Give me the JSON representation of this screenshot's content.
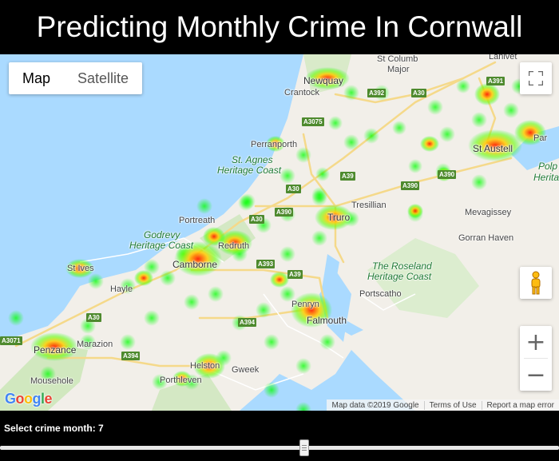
{
  "title": "Predicting Monthly Crime In Cornwall",
  "map_type": {
    "map_label": "Map",
    "satellite_label": "Satellite",
    "selected": "Map"
  },
  "icons": {
    "fullscreen": "fullscreen-icon",
    "pegman": "pegman-icon",
    "zoom_in": "+",
    "zoom_out": "−"
  },
  "attribution": {
    "map_data": "Map data ©2019 Google",
    "terms": "Terms of Use",
    "report": "Report a map error"
  },
  "logo": [
    "G",
    "o",
    "o",
    "g",
    "l",
    "e"
  ],
  "places": {
    "st_columb": "St Columb",
    "major": "Major",
    "lanivet": "Lanivet",
    "newquay": "Newquay",
    "crantock": "Crantock",
    "perranporth": "Perranporth",
    "st_agnes": "St. Agnes",
    "heritage_coast1": "Heritage Coast",
    "st_austell": "St Austell",
    "par": "Par",
    "polp": "Polp",
    "herita": "Herita",
    "tresillian": "Tresillian",
    "truro": "Truro",
    "mevagissey": "Mevagissey",
    "portreath": "Portreath",
    "godrevy": "Godrevy",
    "heritage_coast2": "Heritage Coast",
    "redruth": "Redruth",
    "camborne": "Camborne",
    "gorran_haven": "Gorran Haven",
    "roseland": "The Roseland",
    "heritage_coast3": "Heritage Coast",
    "st_ives": "St Ives",
    "hayle": "Hayle",
    "portscatho": "Portscatho",
    "penryn": "Penryn",
    "falmouth": "Falmouth",
    "marazion": "Marazion",
    "penzance": "Penzance",
    "helston": "Helston",
    "gweek": "Gweek",
    "mousehole": "Mousehole",
    "porthleven": "Porthleven"
  },
  "roads": {
    "a392": "A392",
    "a30_n": "A30",
    "a391": "A391",
    "a3075": "A3075",
    "a39_n": "A39",
    "a390_e": "A390",
    "a390_m": "A390",
    "a30_m": "A30",
    "a390_w": "A390",
    "a30_w": "A30",
    "a393": "A393",
    "a39_s": "A39",
    "a394_e": "A394",
    "a30_sw": "A30",
    "a3071": "A3071",
    "a394_w": "A394",
    "a390_ne": "A390"
  },
  "slider": {
    "label": "Select crime month: 7",
    "value": 7,
    "min": 1,
    "max": 12
  },
  "colors": {
    "sea": "#aadaff",
    "land": "#f2efe9",
    "heat_low": "#00ff00",
    "heat_high": "#ff0000"
  }
}
